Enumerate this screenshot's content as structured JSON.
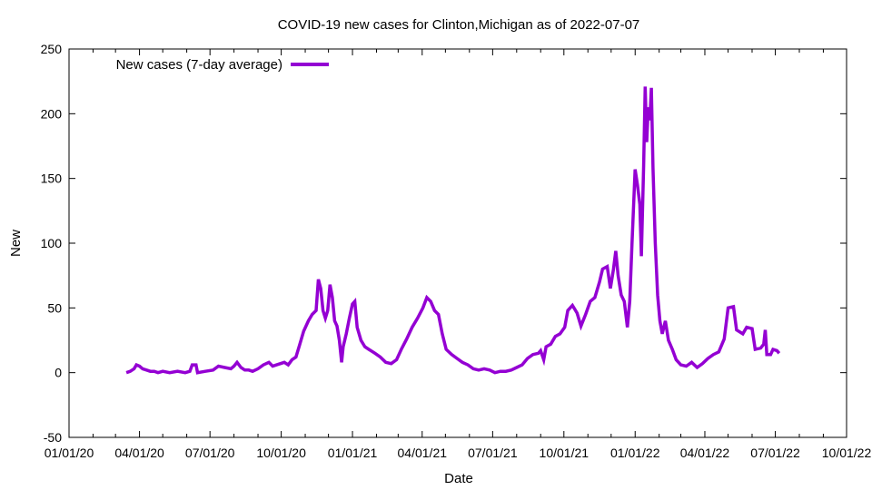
{
  "chart_data": {
    "type": "line",
    "title": "COVID-19 new cases for Clinton,Michigan as of 2022-07-07",
    "xlabel": "Date",
    "ylabel": "New",
    "xlim": [
      "2020-01-01",
      "2022-10-01"
    ],
    "ylim": [
      -50,
      250
    ],
    "x_ticks": [
      "01/01/20",
      "04/01/20",
      "07/01/20",
      "10/01/20",
      "01/01/21",
      "04/01/21",
      "07/01/21",
      "10/01/21",
      "01/01/22",
      "04/01/22",
      "07/01/22",
      "10/01/22"
    ],
    "y_ticks": [
      -50,
      0,
      50,
      100,
      150,
      200,
      250
    ],
    "grid": false,
    "legend_position": "top-left",
    "line_color": "#9400d3",
    "series": [
      {
        "name": "New cases (7-day average)",
        "points": [
          [
            "2020-03-15",
            0
          ],
          [
            "2020-03-20",
            1
          ],
          [
            "2020-03-25",
            3
          ],
          [
            "2020-03-28",
            6
          ],
          [
            "2020-04-01",
            5
          ],
          [
            "2020-04-05",
            3
          ],
          [
            "2020-04-10",
            2
          ],
          [
            "2020-04-15",
            1
          ],
          [
            "2020-04-20",
            1
          ],
          [
            "2020-04-25",
            0
          ],
          [
            "2020-05-01",
            1
          ],
          [
            "2020-05-10",
            0
          ],
          [
            "2020-05-20",
            1
          ],
          [
            "2020-05-30",
            0
          ],
          [
            "2020-06-05",
            1
          ],
          [
            "2020-06-08",
            6
          ],
          [
            "2020-06-13",
            6
          ],
          [
            "2020-06-15",
            0
          ],
          [
            "2020-06-25",
            1
          ],
          [
            "2020-07-05",
            2
          ],
          [
            "2020-07-12",
            5
          ],
          [
            "2020-07-20",
            4
          ],
          [
            "2020-07-28",
            3
          ],
          [
            "2020-08-01",
            5
          ],
          [
            "2020-08-05",
            8
          ],
          [
            "2020-08-10",
            4
          ],
          [
            "2020-08-15",
            2
          ],
          [
            "2020-08-20",
            2
          ],
          [
            "2020-08-25",
            1
          ],
          [
            "2020-09-01",
            3
          ],
          [
            "2020-09-08",
            6
          ],
          [
            "2020-09-15",
            8
          ],
          [
            "2020-09-20",
            5
          ],
          [
            "2020-09-25",
            6
          ],
          [
            "2020-09-30",
            7
          ],
          [
            "2020-10-05",
            8
          ],
          [
            "2020-10-10",
            6
          ],
          [
            "2020-10-15",
            10
          ],
          [
            "2020-10-20",
            12
          ],
          [
            "2020-10-25",
            22
          ],
          [
            "2020-10-30",
            32
          ],
          [
            "2020-11-05",
            40
          ],
          [
            "2020-11-10",
            45
          ],
          [
            "2020-11-15",
            48
          ],
          [
            "2020-11-18",
            72
          ],
          [
            "2020-11-21",
            65
          ],
          [
            "2020-11-24",
            48
          ],
          [
            "2020-11-27",
            42
          ],
          [
            "2020-11-30",
            48
          ],
          [
            "2020-12-03",
            68
          ],
          [
            "2020-12-06",
            58
          ],
          [
            "2020-12-09",
            40
          ],
          [
            "2020-12-12",
            36
          ],
          [
            "2020-12-15",
            25
          ],
          [
            "2020-12-18",
            8
          ],
          [
            "2020-12-20",
            20
          ],
          [
            "2020-12-24",
            30
          ],
          [
            "2020-12-28",
            42
          ],
          [
            "2021-01-01",
            53
          ],
          [
            "2021-01-04",
            55
          ],
          [
            "2021-01-07",
            35
          ],
          [
            "2021-01-12",
            25
          ],
          [
            "2021-01-17",
            20
          ],
          [
            "2021-01-22",
            18
          ],
          [
            "2021-01-30",
            15
          ],
          [
            "2021-02-06",
            12
          ],
          [
            "2021-02-13",
            8
          ],
          [
            "2021-02-20",
            7
          ],
          [
            "2021-02-27",
            10
          ],
          [
            "2021-03-05",
            18
          ],
          [
            "2021-03-12",
            26
          ],
          [
            "2021-03-19",
            35
          ],
          [
            "2021-03-26",
            42
          ],
          [
            "2021-04-02",
            50
          ],
          [
            "2021-04-07",
            58
          ],
          [
            "2021-04-12",
            55
          ],
          [
            "2021-04-17",
            48
          ],
          [
            "2021-04-22",
            45
          ],
          [
            "2021-04-27",
            30
          ],
          [
            "2021-05-02",
            18
          ],
          [
            "2021-05-09",
            14
          ],
          [
            "2021-05-16",
            11
          ],
          [
            "2021-05-23",
            8
          ],
          [
            "2021-05-30",
            6
          ],
          [
            "2021-06-06",
            3
          ],
          [
            "2021-06-13",
            2
          ],
          [
            "2021-06-20",
            3
          ],
          [
            "2021-06-27",
            2
          ],
          [
            "2021-07-04",
            0
          ],
          [
            "2021-07-11",
            1
          ],
          [
            "2021-07-18",
            1
          ],
          [
            "2021-07-25",
            2
          ],
          [
            "2021-08-01",
            4
          ],
          [
            "2021-08-08",
            6
          ],
          [
            "2021-08-15",
            11
          ],
          [
            "2021-08-22",
            14
          ],
          [
            "2021-08-29",
            15
          ],
          [
            "2021-09-01",
            17
          ],
          [
            "2021-09-05",
            10
          ],
          [
            "2021-09-08",
            20
          ],
          [
            "2021-09-14",
            22
          ],
          [
            "2021-09-20",
            28
          ],
          [
            "2021-09-26",
            30
          ],
          [
            "2021-10-02",
            35
          ],
          [
            "2021-10-06",
            48
          ],
          [
            "2021-10-12",
            52
          ],
          [
            "2021-10-18",
            46
          ],
          [
            "2021-10-23",
            36
          ],
          [
            "2021-10-29",
            45
          ],
          [
            "2021-11-04",
            55
          ],
          [
            "2021-11-10",
            58
          ],
          [
            "2021-11-16",
            70
          ],
          [
            "2021-11-20",
            80
          ],
          [
            "2021-11-26",
            82
          ],
          [
            "2021-11-30",
            65
          ],
          [
            "2021-12-04",
            80
          ],
          [
            "2021-12-07",
            94
          ],
          [
            "2021-12-10",
            75
          ],
          [
            "2021-12-14",
            60
          ],
          [
            "2021-12-18",
            55
          ],
          [
            "2021-12-22",
            35
          ],
          [
            "2021-12-25",
            55
          ],
          [
            "2021-12-28",
            100
          ],
          [
            "2022-01-01",
            157
          ],
          [
            "2022-01-04",
            145
          ],
          [
            "2022-01-07",
            130
          ],
          [
            "2022-01-09",
            90
          ],
          [
            "2022-01-12",
            160
          ],
          [
            "2022-01-14",
            221
          ],
          [
            "2022-01-16",
            178
          ],
          [
            "2022-01-18",
            205
          ],
          [
            "2022-01-20",
            195
          ],
          [
            "2022-01-22",
            220
          ],
          [
            "2022-01-24",
            158
          ],
          [
            "2022-01-27",
            100
          ],
          [
            "2022-01-30",
            60
          ],
          [
            "2022-02-02",
            40
          ],
          [
            "2022-02-05",
            30
          ],
          [
            "2022-02-09",
            40
          ],
          [
            "2022-02-13",
            25
          ],
          [
            "2022-02-18",
            18
          ],
          [
            "2022-02-23",
            10
          ],
          [
            "2022-03-01",
            6
          ],
          [
            "2022-03-08",
            5
          ],
          [
            "2022-03-15",
            8
          ],
          [
            "2022-03-22",
            4
          ],
          [
            "2022-03-29",
            7
          ],
          [
            "2022-04-05",
            11
          ],
          [
            "2022-04-12",
            14
          ],
          [
            "2022-04-19",
            16
          ],
          [
            "2022-04-26",
            26
          ],
          [
            "2022-05-01",
            50
          ],
          [
            "2022-05-08",
            51
          ],
          [
            "2022-05-12",
            33
          ],
          [
            "2022-05-20",
            30
          ],
          [
            "2022-05-25",
            35
          ],
          [
            "2022-06-01",
            34
          ],
          [
            "2022-06-05",
            18
          ],
          [
            "2022-06-12",
            19
          ],
          [
            "2022-06-16",
            22
          ],
          [
            "2022-06-18",
            33
          ],
          [
            "2022-06-20",
            14
          ],
          [
            "2022-06-25",
            14
          ],
          [
            "2022-06-28",
            18
          ],
          [
            "2022-07-03",
            17
          ],
          [
            "2022-07-06",
            15
          ]
        ]
      }
    ]
  }
}
